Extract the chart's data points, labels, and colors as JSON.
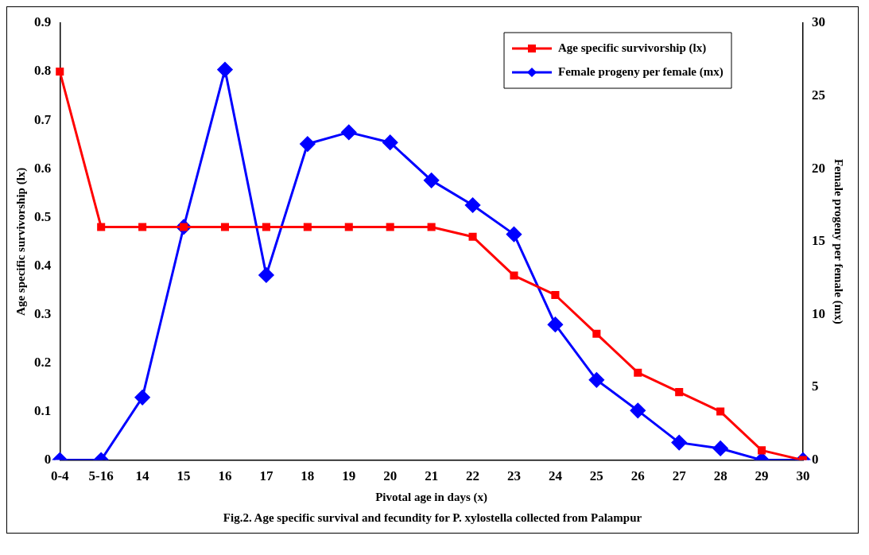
{
  "chart_data": {
    "type": "line",
    "xlabel": "Pivotal age in days (x)",
    "ylabel": "Age specific survivorship (lx)",
    "y2label": "Female progeny per female (mx)",
    "categories": [
      "0-4",
      "5-16",
      "14",
      "15",
      "16",
      "17",
      "18",
      "19",
      "20",
      "21",
      "22",
      "23",
      "24",
      "25",
      "26",
      "27",
      "28",
      "29",
      "30"
    ],
    "series": [
      {
        "name": "Age specific survivorship (lx)",
        "color": "#ff0000",
        "marker": "square",
        "values": [
          0.8,
          0.48,
          0.48,
          0.48,
          0.48,
          0.48,
          0.48,
          0.48,
          0.48,
          0.48,
          0.46,
          0.38,
          0.34,
          0.26,
          0.18,
          0.14,
          0.1,
          0.02,
          0
        ]
      },
      {
        "name": "Female progeny per female (mx)",
        "color": "#0000ff",
        "marker": "diamond",
        "axis": "y2",
        "values": [
          0,
          0,
          4.3,
          16,
          26.8,
          12.7,
          21.7,
          22.5,
          21.8,
          19.2,
          17.5,
          15.5,
          9.3,
          5.5,
          3.4,
          1.2,
          0.8,
          0,
          0
        ]
      }
    ],
    "ylim": [
      0,
      0.9
    ],
    "yticks": [
      0,
      0.1,
      0.2,
      0.3,
      0.4,
      0.5,
      0.6,
      0.7,
      0.8,
      0.9
    ],
    "y2lim": [
      0,
      30
    ],
    "y2ticks": [
      0,
      5,
      10,
      15,
      20,
      25,
      30
    ],
    "grid": false,
    "legend": "top right",
    "line_style": "solid",
    "annotations": [
      "Fig.2. Age specific survival and fecundity for P. xylostella collected from Palampur"
    ]
  }
}
